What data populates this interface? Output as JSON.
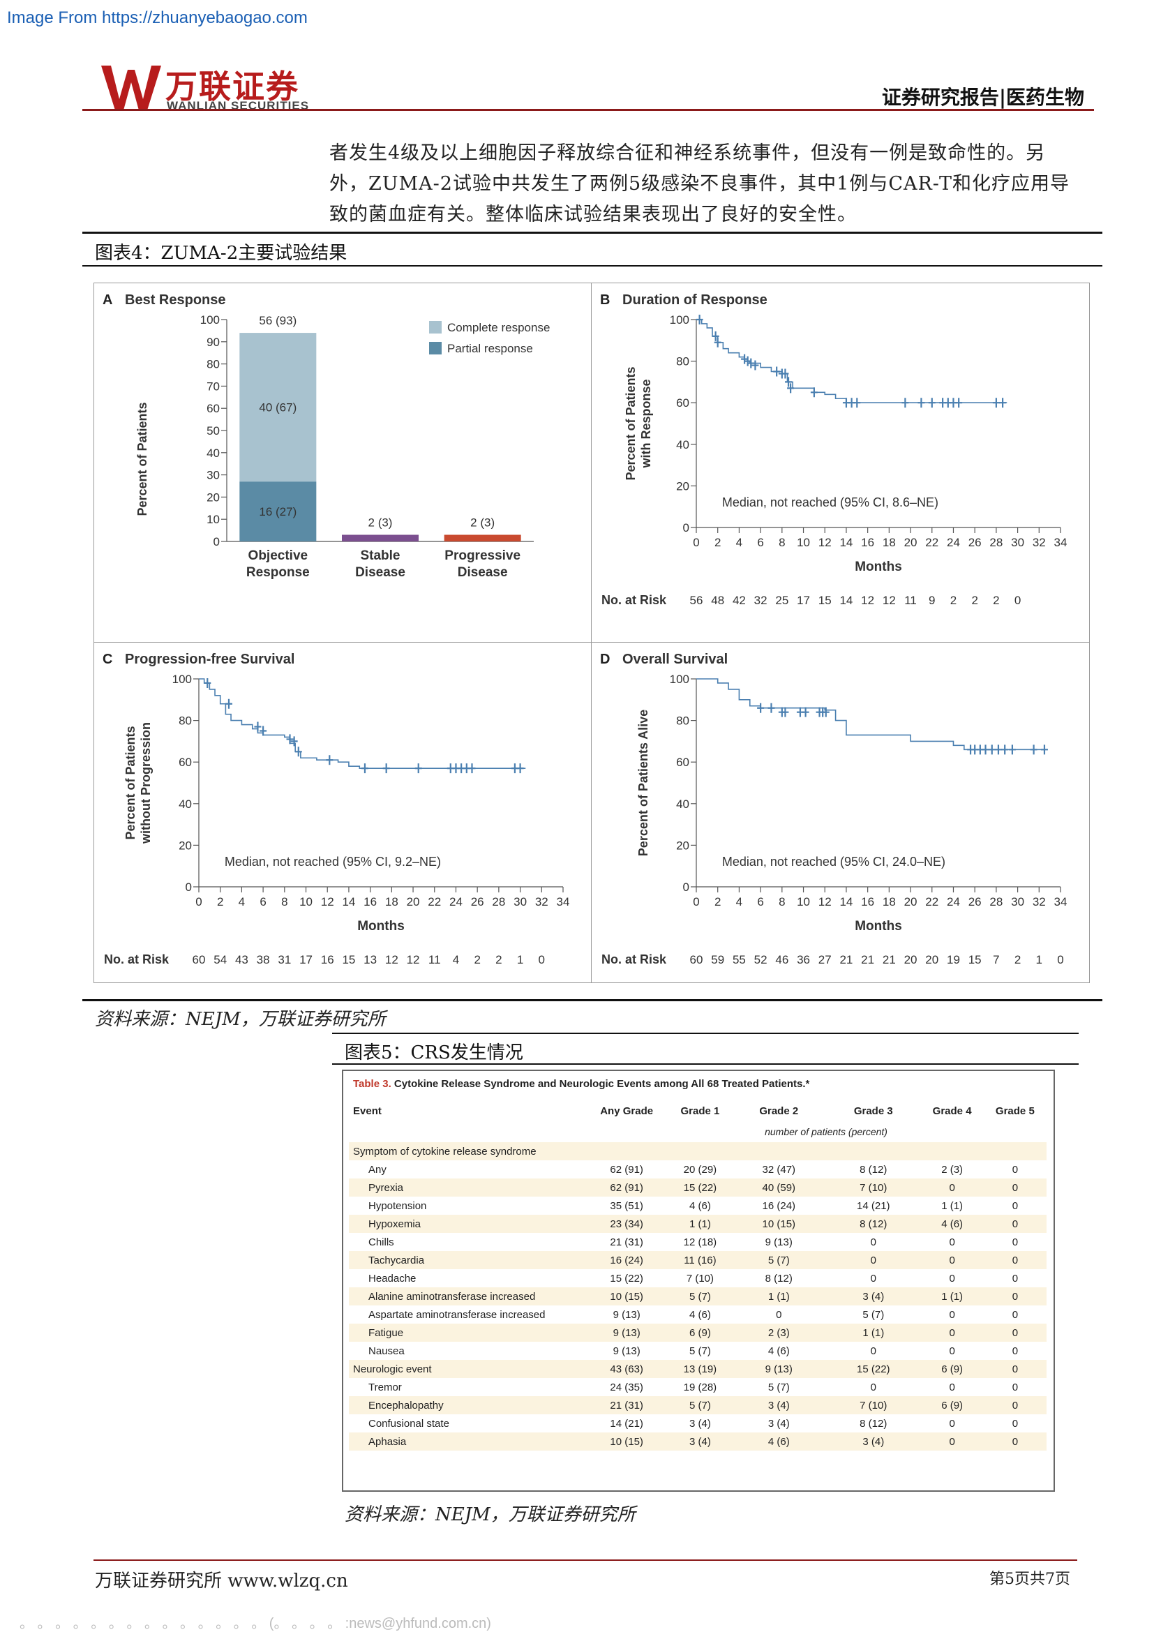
{
  "source_url": "Image From https://zhuanyebaogao.com",
  "header": {
    "logo_cn": "万联证券",
    "logo_en": "WANLIAN SECURITIES",
    "category": "证券研究报告|医药生物"
  },
  "intro_text": "者发生4级及以上细胞因子释放综合征和神经系统事件，但没有一例是致命性的。另外，ZUMA-2试验中共发生了两例5级感染不良事件，其中1例与CAR-T和化疗应用导致的菌血症有关。整体临床试验结果表现出了良好的安全性。",
  "figure4": {
    "title": "图表4：ZUMA-2主要试验结果",
    "source": "资料来源：NEJM，万联证券研究所"
  },
  "figure5": {
    "title": "图表5：CRS发生情况",
    "source": "资料来源：NEJM，万联证券研究所"
  },
  "chart_data": [
    {
      "panel": "A",
      "title": "Best Response",
      "type": "bar",
      "ylabel": "Percent of Patients",
      "ylim": [
        0,
        100
      ],
      "yticks": [
        0,
        10,
        20,
        30,
        40,
        50,
        60,
        70,
        80,
        90,
        100
      ],
      "categories": [
        "Objective Response",
        "Stable Disease",
        "Progressive Disease"
      ],
      "category_lines": [
        [
          "Objective",
          "Response"
        ],
        [
          "Stable",
          "Disease"
        ],
        [
          "Progressive",
          "Disease"
        ]
      ],
      "series": [
        {
          "name": "Partial response",
          "values": [
            27,
            0,
            0
          ],
          "color": "#5b8ba5"
        },
        {
          "name": "Complete response",
          "values": [
            67,
            0,
            0
          ],
          "color": "#a8c2cf"
        },
        {
          "name": "",
          "values": [
            0,
            3,
            0
          ],
          "color": "#7b4f8f"
        },
        {
          "name": "",
          "values": [
            0,
            0,
            3
          ],
          "color": "#c94a2f"
        }
      ],
      "bar_labels": {
        "total": "56 (93)",
        "complete": "40 (67)",
        "partial": "16 (27)",
        "stable": "2 (3)",
        "progressive": "2 (3)"
      },
      "legend": [
        "Complete response",
        "Partial response"
      ],
      "legend_position": "top-right"
    },
    {
      "panel": "B",
      "title": "Duration of Response",
      "type": "line",
      "ylabel_lines": [
        "Percent of Patients",
        "with Response"
      ],
      "xlabel": "Months",
      "xlim": [
        0,
        34
      ],
      "ylim": [
        0,
        100
      ],
      "xticks": [
        0,
        2,
        4,
        6,
        8,
        10,
        12,
        14,
        16,
        18,
        20,
        22,
        24,
        26,
        28,
        30,
        32,
        34
      ],
      "yticks": [
        0,
        20,
        40,
        60,
        80,
        100
      ],
      "steps": [
        [
          0,
          100
        ],
        [
          0.5,
          98
        ],
        [
          1,
          96
        ],
        [
          1.5,
          92
        ],
        [
          2,
          89
        ],
        [
          2.5,
          86
        ],
        [
          3,
          84
        ],
        [
          4,
          82
        ],
        [
          4.5,
          80
        ],
        [
          5,
          79
        ],
        [
          6,
          77
        ],
        [
          7,
          75
        ],
        [
          8,
          74
        ],
        [
          8.5,
          70
        ],
        [
          9,
          67
        ],
        [
          11,
          65
        ],
        [
          12,
          64
        ],
        [
          13,
          62
        ],
        [
          14,
          60
        ],
        [
          29,
          60
        ]
      ],
      "censors": [
        [
          0.3,
          100
        ],
        [
          1.8,
          92
        ],
        [
          2,
          89
        ],
        [
          4.5,
          81
        ],
        [
          4.8,
          80
        ],
        [
          5.1,
          79
        ],
        [
          5.5,
          78
        ],
        [
          7.5,
          75
        ],
        [
          8,
          74
        ],
        [
          8.3,
          74
        ],
        [
          8.6,
          70
        ],
        [
          8.8,
          67
        ],
        [
          11,
          65
        ],
        [
          14,
          60
        ],
        [
          14.5,
          60
        ],
        [
          15,
          60
        ],
        [
          19.5,
          60
        ],
        [
          21,
          60
        ],
        [
          22,
          60
        ],
        [
          23,
          60
        ],
        [
          23.5,
          60
        ],
        [
          24,
          60
        ],
        [
          24.5,
          60
        ],
        [
          28,
          60
        ],
        [
          28.6,
          60
        ]
      ],
      "annotation": "Median, not reached (95% CI, 8.6–NE)",
      "risk_label": "No. at Risk",
      "at_risk": [
        56,
        48,
        42,
        32,
        25,
        17,
        15,
        14,
        12,
        12,
        11,
        9,
        2,
        2,
        2,
        0
      ]
    },
    {
      "panel": "C",
      "title": "Progression-free Survival",
      "type": "line",
      "ylabel_lines": [
        "Percent of Patients",
        "without Progression"
      ],
      "xlabel": "Months",
      "xlim": [
        0,
        34
      ],
      "ylim": [
        0,
        100
      ],
      "xticks": [
        0,
        2,
        4,
        6,
        8,
        10,
        12,
        14,
        16,
        18,
        20,
        22,
        24,
        26,
        28,
        30,
        32,
        34
      ],
      "yticks": [
        0,
        20,
        40,
        60,
        80,
        100
      ],
      "steps": [
        [
          0,
          100
        ],
        [
          0.5,
          98
        ],
        [
          1,
          95
        ],
        [
          1.5,
          92
        ],
        [
          2,
          88
        ],
        [
          2.5,
          83
        ],
        [
          3,
          80
        ],
        [
          4,
          78
        ],
        [
          5,
          76
        ],
        [
          5.5,
          74
        ],
        [
          6,
          73
        ],
        [
          8,
          72
        ],
        [
          8.5,
          69
        ],
        [
          9,
          65
        ],
        [
          9.5,
          62
        ],
        [
          11,
          61
        ],
        [
          13,
          60
        ],
        [
          14,
          58
        ],
        [
          15,
          57
        ],
        [
          30.5,
          57
        ]
      ],
      "censors": [
        [
          0.8,
          98
        ],
        [
          2.8,
          88
        ],
        [
          5.5,
          77
        ],
        [
          6,
          75
        ],
        [
          8.5,
          71
        ],
        [
          8.9,
          70
        ],
        [
          9.3,
          65
        ],
        [
          12.2,
          61
        ],
        [
          15.5,
          57
        ],
        [
          17.5,
          57
        ],
        [
          20.5,
          57
        ],
        [
          23.5,
          57
        ],
        [
          24,
          57
        ],
        [
          24.5,
          57
        ],
        [
          25,
          57
        ],
        [
          25.5,
          57
        ],
        [
          29.5,
          57
        ],
        [
          30,
          57
        ]
      ],
      "annotation": "Median, not reached (95% CI, 9.2–NE)",
      "risk_label": "No. at Risk",
      "at_risk": [
        60,
        54,
        43,
        38,
        31,
        17,
        16,
        15,
        13,
        12,
        12,
        11,
        4,
        2,
        2,
        1,
        0
      ]
    },
    {
      "panel": "D",
      "title": "Overall Survival",
      "type": "line",
      "ylabel_lines": [
        "Percent of Patients Alive"
      ],
      "xlabel": "Months",
      "xlim": [
        0,
        34
      ],
      "ylim": [
        0,
        100
      ],
      "xticks": [
        0,
        2,
        4,
        6,
        8,
        10,
        12,
        14,
        16,
        18,
        20,
        22,
        24,
        26,
        28,
        30,
        32,
        34
      ],
      "yticks": [
        0,
        20,
        40,
        60,
        80,
        100
      ],
      "steps": [
        [
          0,
          100
        ],
        [
          1,
          100
        ],
        [
          2,
          98
        ],
        [
          3,
          95
        ],
        [
          4,
          90
        ],
        [
          5,
          87
        ],
        [
          6,
          86
        ],
        [
          12,
          85
        ],
        [
          13,
          80
        ],
        [
          14,
          73
        ],
        [
          20,
          70
        ],
        [
          24,
          68
        ],
        [
          25,
          66
        ],
        [
          32.5,
          66
        ]
      ],
      "censors": [
        [
          6,
          86
        ],
        [
          7,
          86
        ],
        [
          8,
          84
        ],
        [
          8.3,
          84
        ],
        [
          9.7,
          84
        ],
        [
          10.2,
          84
        ],
        [
          11.5,
          84
        ],
        [
          11.8,
          84
        ],
        [
          12.1,
          84
        ],
        [
          25.6,
          66
        ],
        [
          26,
          66
        ],
        [
          26.5,
          66
        ],
        [
          27,
          66
        ],
        [
          27.6,
          66
        ],
        [
          28.2,
          66
        ],
        [
          28.8,
          66
        ],
        [
          29.5,
          66
        ],
        [
          31.5,
          66
        ],
        [
          32.5,
          66
        ]
      ],
      "annotation": "Median, not reached (95% CI, 24.0–NE)",
      "risk_label": "No. at Risk",
      "at_risk": [
        60,
        59,
        55,
        52,
        46,
        36,
        27,
        21,
        21,
        21,
        20,
        20,
        19,
        15,
        7,
        2,
        1,
        0
      ]
    }
  ],
  "table3": {
    "title_prefix": "Table 3.",
    "title_rest": " Cytokine Release Syndrome and Neurologic Events among All 68 Treated Patients.*",
    "headers": [
      "Event",
      "Any Grade",
      "Grade 1",
      "Grade 2",
      "Grade 3",
      "Grade 4",
      "Grade 5"
    ],
    "subheader": "number of patients (percent)",
    "rows": [
      {
        "event": "Symptom of cytokine release syndrome",
        "section": true,
        "cells": [
          "",
          "",
          "",
          "",
          "",
          ""
        ]
      },
      {
        "event": "Any",
        "cells": [
          "62 (91)",
          "20 (29)",
          "32 (47)",
          "8 (12)",
          "2 (3)",
          "0"
        ]
      },
      {
        "event": "Pyrexia",
        "cells": [
          "62 (91)",
          "15 (22)",
          "40 (59)",
          "7 (10)",
          "0",
          "0"
        ]
      },
      {
        "event": "Hypotension",
        "cells": [
          "35 (51)",
          "4 (6)",
          "16 (24)",
          "14 (21)",
          "1 (1)",
          "0"
        ]
      },
      {
        "event": "Hypoxemia",
        "cells": [
          "23 (34)",
          "1 (1)",
          "10 (15)",
          "8 (12)",
          "4 (6)",
          "0"
        ]
      },
      {
        "event": "Chills",
        "cells": [
          "21 (31)",
          "12 (18)",
          "9 (13)",
          "0",
          "0",
          "0"
        ]
      },
      {
        "event": "Tachycardia",
        "cells": [
          "16 (24)",
          "11 (16)",
          "5 (7)",
          "0",
          "0",
          "0"
        ]
      },
      {
        "event": "Headache",
        "cells": [
          "15 (22)",
          "7 (10)",
          "8 (12)",
          "0",
          "0",
          "0"
        ]
      },
      {
        "event": "Alanine aminotransferase increased",
        "cells": [
          "10 (15)",
          "5 (7)",
          "1 (1)",
          "3 (4)",
          "1 (1)",
          "0"
        ]
      },
      {
        "event": "Aspartate aminotransferase increased",
        "cells": [
          "9 (13)",
          "4 (6)",
          "0",
          "5 (7)",
          "0",
          "0"
        ]
      },
      {
        "event": "Fatigue",
        "cells": [
          "9 (13)",
          "6 (9)",
          "2 (3)",
          "1 (1)",
          "0",
          "0"
        ]
      },
      {
        "event": "Nausea",
        "cells": [
          "9 (13)",
          "5 (7)",
          "4 (6)",
          "0",
          "0",
          "0"
        ]
      },
      {
        "event": "Neurologic event",
        "section": true,
        "cells": [
          "43 (63)",
          "13 (19)",
          "9 (13)",
          "15 (22)",
          "6 (9)",
          "0"
        ]
      },
      {
        "event": "Tremor",
        "cells": [
          "24 (35)",
          "19 (28)",
          "5 (7)",
          "0",
          "0",
          "0"
        ]
      },
      {
        "event": "Encephalopathy",
        "cells": [
          "21 (31)",
          "5 (7)",
          "3 (4)",
          "7 (10)",
          "6 (9)",
          "0"
        ]
      },
      {
        "event": "Confusional state",
        "cells": [
          "14 (21)",
          "3 (4)",
          "3 (4)",
          "8 (12)",
          "0",
          "0"
        ]
      },
      {
        "event": "Aphasia",
        "cells": [
          "10 (15)",
          "3 (4)",
          "4 (6)",
          "3 (4)",
          "0",
          "0"
        ]
      }
    ]
  },
  "footer": {
    "left": "万联证券研究所 www.wlzq.cn",
    "right": "第5页共7页",
    "bottom_note": "。 。 。 。 。 。 。 。 。 。 。 。 。 。 (。 。 。 。 :news@yhfund.com.cn)"
  },
  "colors": {
    "brand_red": "#8b1a1a",
    "km_line": "#4a7fb0",
    "complete_response": "#a8c2cf",
    "partial_response": "#5b8ba5",
    "stable": "#7b4f8f",
    "progressive": "#c94a2f",
    "table_shade": "#fbf3df"
  }
}
